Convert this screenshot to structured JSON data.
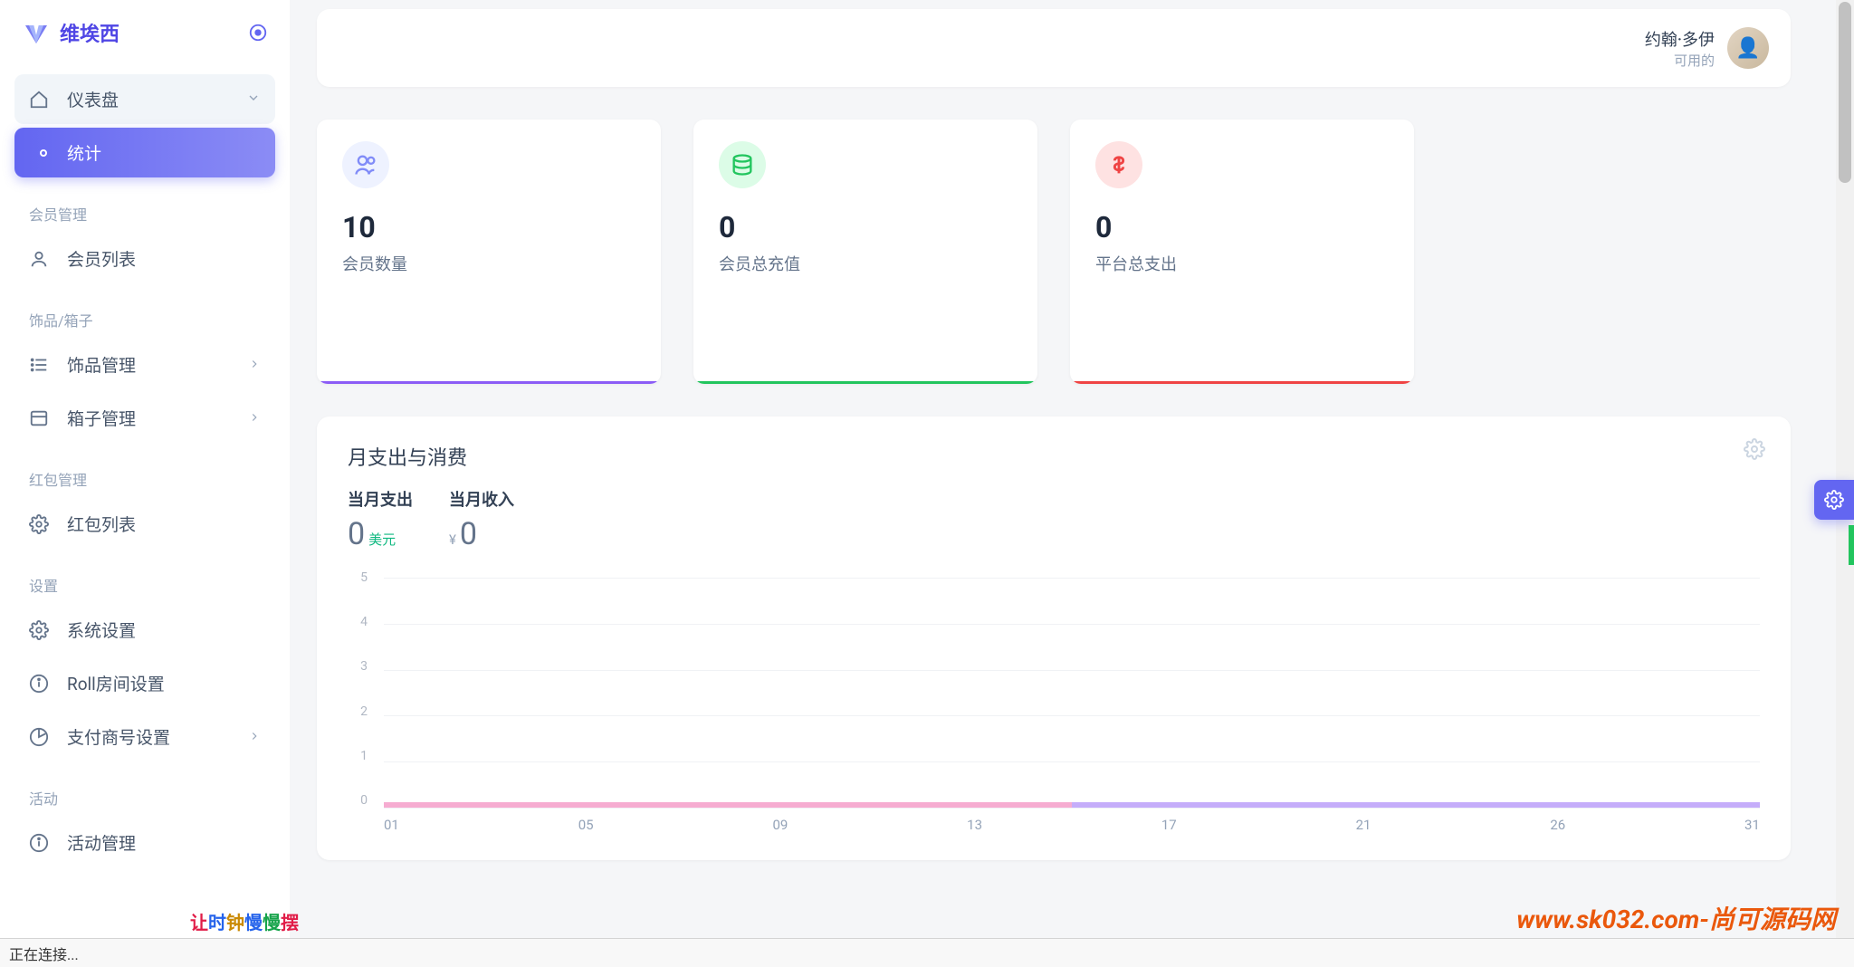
{
  "brand": "维埃西",
  "header": {
    "user_name": "约翰·多伊",
    "user_sub": "可用的"
  },
  "sidebar": {
    "dashboard": "仪表盘",
    "stats": "统计",
    "sections": {
      "members": {
        "title": "会员管理",
        "items": [
          "会员列表"
        ]
      },
      "items": {
        "title": "饰品/箱子",
        "items": [
          "饰品管理",
          "箱子管理"
        ]
      },
      "redpack": {
        "title": "红包管理",
        "items": [
          "红包列表"
        ]
      },
      "settings": {
        "title": "设置",
        "items": [
          "系统设置",
          "Roll房间设置",
          "支付商号设置"
        ]
      },
      "activity": {
        "title": "活动",
        "items": [
          "活动管理"
        ]
      }
    }
  },
  "stats": [
    {
      "value": "10",
      "label": "会员数量",
      "icon_bg": "#eef2ff",
      "icon_color": "#818cf8",
      "bar_color": "#8b5cf6"
    },
    {
      "value": "0",
      "label": "会员总充值",
      "icon_bg": "#dcfce7",
      "icon_color": "#22c55e",
      "bar_color": "#22c55e"
    },
    {
      "value": "0",
      "label": "平台总支出",
      "icon_bg": "#fee2e2",
      "icon_color": "#ef4444",
      "bar_color": "#ef4444"
    }
  ],
  "chart": {
    "title": "月支出与消费",
    "metrics": [
      {
        "label": "当月支出",
        "value": "0",
        "unit": "美元",
        "unit_class": "unit-green"
      },
      {
        "label": "当月收入",
        "value": "0",
        "unit": "¥",
        "unit_class": "unit-grey",
        "unit_before": true
      }
    ],
    "y_ticks": [
      "5",
      "4",
      "3",
      "2",
      "1",
      "0"
    ],
    "x_ticks": [
      "01",
      "05",
      "09",
      "13",
      "17",
      "21",
      "26",
      "31"
    ],
    "ylim": [
      0,
      5
    ]
  },
  "status": "正在连接...",
  "watermark_left": "让时钟慢慢摆",
  "watermark_right": "www.sk032.com-尚可源码网"
}
